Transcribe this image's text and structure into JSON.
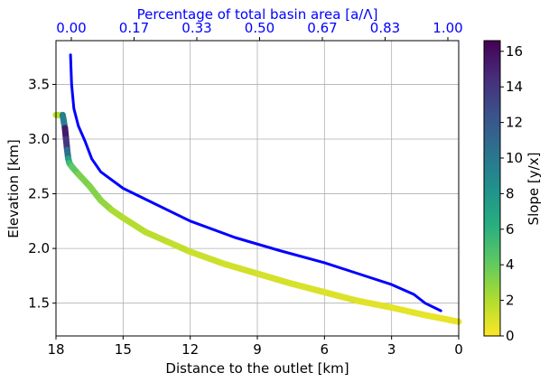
{
  "chart_data": {
    "type": "line",
    "xlabel": "Distance to the outlet [km]",
    "ylabel": "Elevation [km]",
    "top_axis_label": "Percentage of total basin area [a/Λ]",
    "colorbar_label": "Slope [y/x]",
    "xlim": [
      18,
      0
    ],
    "ylim": [
      1.2,
      3.9
    ],
    "grid": true,
    "x_ticks": [
      "18",
      "15",
      "12",
      "9",
      "6",
      "3",
      "0"
    ],
    "y_ticks": [
      "1.5",
      "2.0",
      "2.5",
      "3.0",
      "3.5"
    ],
    "top_ticks": [
      "0.00",
      "0.17",
      "0.33",
      "0.50",
      "0.67",
      "0.83",
      "1.00"
    ],
    "colorbar_ticks": [
      "0",
      "2",
      "4",
      "6",
      "8",
      "10",
      "12",
      "14",
      "16"
    ],
    "colorbar_range": [
      0,
      16.6
    ],
    "colors": {
      "area_curve": "#0000ff",
      "top_axis": "#0000ff",
      "colormap": "viridis"
    },
    "series": [
      {
        "role": "profile colored by slope",
        "x": [
          18.0,
          17.7,
          17.6,
          17.55,
          17.5,
          17.45,
          17.4,
          17.3,
          17.0,
          16.5,
          16.0,
          15.5,
          15.0,
          14.0,
          13.0,
          12.0,
          10.5,
          9.0,
          7.5,
          6.0,
          4.5,
          3.0,
          1.5,
          0.0
        ],
        "y": [
          3.22,
          3.22,
          3.1,
          3.0,
          2.9,
          2.82,
          2.78,
          2.75,
          2.68,
          2.57,
          2.44,
          2.35,
          2.28,
          2.15,
          2.06,
          1.97,
          1.86,
          1.77,
          1.68,
          1.6,
          1.52,
          1.46,
          1.39,
          1.33
        ],
        "slope": [
          0.5,
          3.0,
          16.0,
          15.0,
          13.0,
          8.0,
          6.0,
          4.5,
          3.8,
          3.0,
          3.3,
          2.2,
          2.0,
          1.8,
          1.6,
          1.4,
          1.2,
          1.1,
          1.0,
          0.9,
          0.8,
          0.7,
          0.6,
          0.5
        ]
      },
      {
        "role": "elevation vs basin area",
        "color": "#0000ff",
        "x": [
          17.35,
          17.3,
          17.2,
          17.0,
          16.7,
          16.4,
          16.0,
          15.0,
          14.0,
          12.0,
          10.0,
          8.0,
          6.0,
          4.5,
          3.0,
          2.0,
          1.5,
          0.8
        ],
        "y": [
          3.77,
          3.5,
          3.28,
          3.12,
          2.98,
          2.82,
          2.7,
          2.55,
          2.45,
          2.25,
          2.1,
          1.98,
          1.87,
          1.77,
          1.67,
          1.58,
          1.5,
          1.43
        ]
      }
    ]
  }
}
